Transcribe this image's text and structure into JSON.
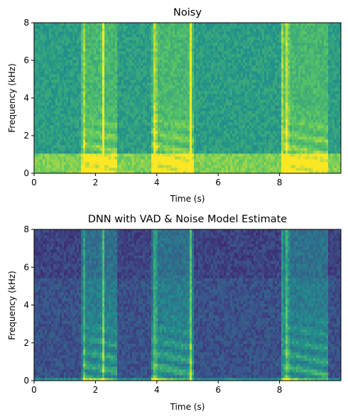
{
  "figure": {
    "panels": [
      {
        "title": "Noisy",
        "xlabel": "Time (s)",
        "ylabel": "Frequency (kHz)"
      },
      {
        "title": "DNN with VAD & Noise Model Estimate",
        "xlabel": "Time (s)",
        "ylabel": "Frequency (kHz)"
      }
    ]
  },
  "chart_data": [
    {
      "type": "heatmap",
      "title": "Noisy",
      "xlabel": "Time (s)",
      "ylabel": "Frequency (kHz)",
      "xlim": [
        0,
        10
      ],
      "ylim": [
        0,
        8
      ],
      "xticks": [
        0,
        2,
        4,
        6,
        8
      ],
      "yticks": [
        0,
        2,
        4,
        6,
        8
      ],
      "colormap": "viridis",
      "speech_segments_s": [
        [
          1.6,
          2.7
        ],
        [
          3.8,
          5.2
        ],
        [
          8.1,
          9.6
        ]
      ],
      "broadband_events_s": [
        1.6,
        2.25,
        3.95,
        5.1,
        8.1,
        8.25
      ],
      "low_freq_noise_band_khz": [
        0,
        1.0
      ],
      "background_level": 0.55
    },
    {
      "type": "heatmap",
      "title": "DNN with VAD & Noise Model Estimate",
      "xlabel": "Time (s)",
      "ylabel": "Frequency (kHz)",
      "xlim": [
        0,
        10
      ],
      "ylim": [
        0,
        8
      ],
      "xticks": [
        0,
        2,
        4,
        6,
        8
      ],
      "yticks": [
        0,
        2,
        4,
        6,
        8
      ],
      "colormap": "viridis",
      "speech_segments_s": [
        [
          1.6,
          2.7
        ],
        [
          3.8,
          5.2
        ],
        [
          8.1,
          9.6
        ]
      ],
      "broadband_events_s": [
        1.6,
        2.25,
        3.95,
        5.1,
        8.1,
        8.25
      ],
      "low_freq_noise_band_khz": [
        0,
        0.15
      ],
      "background_level": 0.3
    }
  ]
}
